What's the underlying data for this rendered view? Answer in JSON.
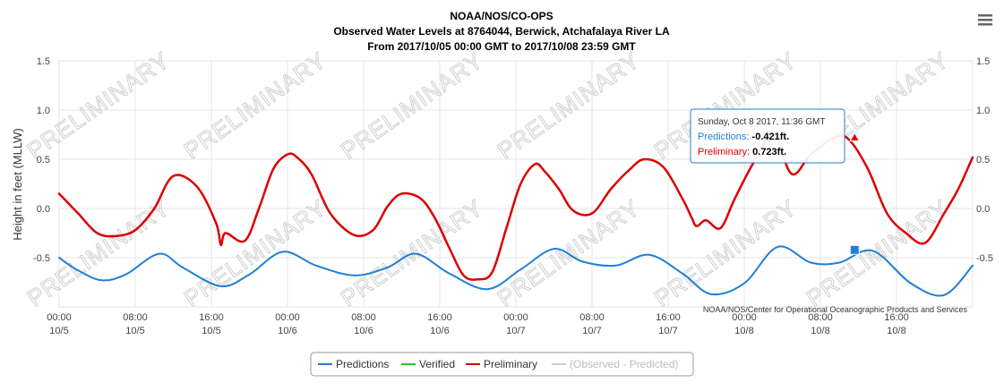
{
  "menu": {
    "icon": "hamburger-menu-icon"
  },
  "chart_data": {
    "type": "line",
    "title": [
      "NOAA/NOS/CO-OPS",
      "Observed Water Levels at 8764044, Berwick, Atchafalaya River LA",
      "From 2017/10/05 00:00 GMT to 2017/10/08 23:59 GMT"
    ],
    "ylabel": "Height in feet (MLLW)",
    "ylim": [
      -1.0,
      1.5
    ],
    "y_ticks": [
      -0.5,
      0.0,
      0.5,
      1.0,
      1.5
    ],
    "y_tick_labels": [
      "-0.5",
      "0.0",
      "0.5",
      "1.0",
      "1.5"
    ],
    "x_range_hours": [
      0,
      96
    ],
    "x_ticks": [
      {
        "hour": 0,
        "label_time": "00:00",
        "label_date": "10/5"
      },
      {
        "hour": 8,
        "label_time": "08:00",
        "label_date": "10/5"
      },
      {
        "hour": 16,
        "label_time": "16:00",
        "label_date": "10/5"
      },
      {
        "hour": 24,
        "label_time": "00:00",
        "label_date": "10/6"
      },
      {
        "hour": 32,
        "label_time": "08:00",
        "label_date": "10/6"
      },
      {
        "hour": 40,
        "label_time": "16:00",
        "label_date": "10/6"
      },
      {
        "hour": 48,
        "label_time": "00:00",
        "label_date": "10/7"
      },
      {
        "hour": 56,
        "label_time": "08:00",
        "label_date": "10/7"
      },
      {
        "hour": 64,
        "label_time": "16:00",
        "label_date": "10/7"
      },
      {
        "hour": 72,
        "label_time": "00:00",
        "label_date": "10/8"
      },
      {
        "hour": 80,
        "label_time": "08:00",
        "label_date": "10/8"
      },
      {
        "hour": 88,
        "label_time": "16:00",
        "label_date": "10/8"
      }
    ],
    "grid": true,
    "watermark": "PRELIMINARY",
    "credit": "NOAA/NOS/Center for Operational Oceanographic Products and Services",
    "series": [
      {
        "name": "Predictions",
        "color": "#1f7fd8",
        "x": [
          0,
          2,
          4.5,
          7,
          10.5,
          13,
          17,
          20,
          23.5,
          27,
          31,
          34.5,
          37.5,
          41,
          45,
          48.5,
          52,
          55,
          58.5,
          62,
          65.5,
          68.5,
          72,
          75.5,
          79,
          82,
          85.5,
          89.5,
          93,
          96
        ],
        "values": [
          -0.5,
          -0.63,
          -0.73,
          -0.67,
          -0.46,
          -0.6,
          -0.79,
          -0.67,
          -0.44,
          -0.58,
          -0.68,
          -0.6,
          -0.46,
          -0.66,
          -0.82,
          -0.62,
          -0.41,
          -0.54,
          -0.58,
          -0.47,
          -0.66,
          -0.87,
          -0.76,
          -0.39,
          -0.55,
          -0.55,
          -0.43,
          -0.76,
          -0.88,
          -0.58
        ]
      },
      {
        "name": "Verified",
        "color": "#22cc22",
        "x": [],
        "values": []
      },
      {
        "name": "Preliminary",
        "color": "#dd0000",
        "x": [
          0,
          1,
          2,
          4,
          6,
          8,
          10,
          12,
          14.5,
          16.5,
          17,
          17.5,
          19.5,
          21,
          22.5,
          24,
          25,
          26.5,
          28.5,
          31,
          33,
          34.5,
          36,
          38,
          39.5,
          41,
          42.5,
          44,
          45.5,
          47,
          48.5,
          50,
          51,
          52.5,
          54,
          56,
          58,
          60,
          61.5,
          63.5,
          65.5,
          66.5,
          67,
          68,
          69.5,
          71,
          73,
          75,
          77,
          79,
          81.5,
          83,
          85,
          87,
          89,
          91,
          93,
          94.5,
          96
        ],
        "values": [
          0.15,
          0.05,
          -0.05,
          -0.25,
          -0.28,
          -0.22,
          0.0,
          0.33,
          0.22,
          -0.15,
          -0.37,
          -0.25,
          -0.33,
          0.0,
          0.4,
          0.55,
          0.52,
          0.35,
          -0.05,
          -0.27,
          -0.22,
          0.02,
          0.15,
          0.1,
          -0.1,
          -0.4,
          -0.68,
          -0.72,
          -0.65,
          -0.2,
          0.25,
          0.45,
          0.38,
          0.2,
          -0.02,
          -0.05,
          0.2,
          0.4,
          0.5,
          0.42,
          0.1,
          -0.1,
          -0.18,
          -0.12,
          -0.2,
          0.1,
          0.47,
          0.75,
          0.35,
          0.55,
          0.72,
          0.7,
          0.4,
          -0.05,
          -0.25,
          -0.35,
          -0.05,
          0.2,
          0.52
        ]
      },
      {
        "name": "(Observed - Predicted)",
        "color": "#cccccc",
        "x": [],
        "values": []
      }
    ],
    "tooltip": {
      "time": "Sunday, Oct 8 2017, 11:36 GMT",
      "lines": [
        {
          "name": "Predictions",
          "value": "-0.421ft.",
          "color": "#1f7fd8"
        },
        {
          "name": "Preliminary",
          "value": "0.723ft.",
          "color": "#dd0000"
        }
      ],
      "hour": 83.6,
      "pred_value": -0.421,
      "prelim_value": 0.723
    },
    "legend": {
      "placement": "bottom-center",
      "items": [
        {
          "name": "Predictions",
          "color": "#1f7fd8",
          "disabled": false
        },
        {
          "name": "Verified",
          "color": "#22cc22",
          "disabled": false
        },
        {
          "name": "Preliminary",
          "color": "#dd0000",
          "disabled": false
        },
        {
          "name": "(Observed - Predicted)",
          "color": "#cccccc",
          "disabled": true
        }
      ]
    }
  }
}
